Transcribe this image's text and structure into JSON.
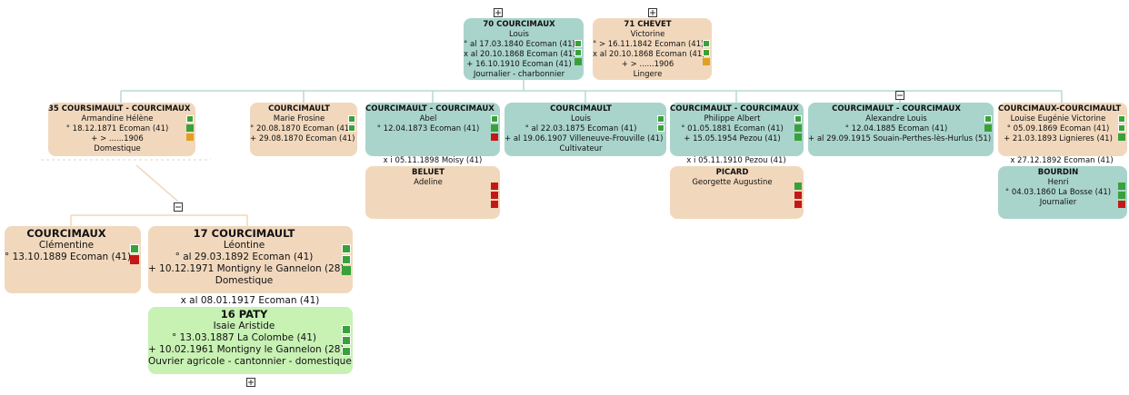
{
  "persons": [
    {
      "title": "70 COURCIMAUX",
      "given": "Louis",
      "details": [
        "° al 17.03.1840 Ecoman (41)",
        "x al 20.10.1868 Ecoman (41)",
        "+ 16.10.1910 Ecoman (41)",
        "Journalier - charbonnier"
      ]
    },
    {
      "title": "71 CHEVET",
      "given": "Victorine",
      "details": [
        "° > 16.11.1842 Ecoman (41)",
        "x al 20.10.1868 Ecoman (41)",
        "+ > ......1906",
        "Lingere"
      ]
    },
    {
      "title": "35 COURSIMAULT - COURCIMAUX",
      "given": "Armandine Hélène",
      "details": [
        "° 18.12.1871 Ecoman (41)",
        "+ > ......1906",
        "Domestique"
      ]
    },
    {
      "title": "COURCIMAULT",
      "given": "Marie Frosine",
      "details": [
        "° 20.08.1870 Ecoman (41)",
        "+ 29.08.1870 Ecoman (41)"
      ]
    },
    {
      "title": "COURCIMAULT - COURCIMAUX",
      "given": "Abel",
      "details": [
        "° 12.04.1873 Ecoman (41)"
      ]
    },
    {
      "title": "BELUET",
      "given": "Adeline",
      "details": []
    },
    {
      "title": "COURCIMAULT",
      "given": "Louis",
      "details": [
        "° al 22.03.1875 Ecoman (41)",
        "+ al 19.06.1907 Villeneuve-Frouville (41)",
        "Cultivateur"
      ]
    },
    {
      "title": "COURCIMAULT - COURCIMAUX",
      "given": "Philippe Albert",
      "details": [
        "° 01.05.1881 Ecoman (41)",
        "+ 15.05.1954 Pezou (41)"
      ]
    },
    {
      "title": "PICARD",
      "given": "Georgette Augustine",
      "details": []
    },
    {
      "title": "COURCIMAULT - COURCIMAUX",
      "given": "Alexandre Louis",
      "details": [
        "° 12.04.1885 Ecoman (41)",
        "+ al 29.09.1915 Souain-Perthes-lès-Hurlus (51)"
      ]
    },
    {
      "title": "COURCIMAUX-COURCIMAULT",
      "given": "Louise Eugénie Victorine",
      "details": [
        "° 05.09.1869 Ecoman (41)",
        "+ 21.03.1893 Lignieres (41)"
      ]
    },
    {
      "title": "BOURDIN",
      "given": "Henri",
      "details": [
        "° 04.03.1860 La Bosse (41)",
        "Journalier"
      ]
    },
    {
      "title": "COURCIMAUX",
      "given": "Clémentine",
      "details": [
        "° 13.10.1889 Ecoman (41)"
      ]
    },
    {
      "title": "17 COURCIMAULT",
      "given": "Léontine",
      "details": [
        "° al 29.03.1892 Ecoman (41)",
        "+ 10.12.1971 Montigny le Gannelon (28)",
        "Domestique"
      ]
    },
    {
      "title": "16 PATY",
      "given": "Isaie Aristide",
      "details": [
        "° 13.03.1887 La Colombe (41)",
        "+ 10.02.1961 Montigny le Gannelon (28)",
        "Ouvrier agricole - cantonnier - domestique"
      ]
    }
  ],
  "marriages": [
    "x i 05.11.1898 Moisy (41)",
    "x i 05.11.1910 Pezou (41)",
    "x 27.12.1892 Ecoman (41)",
    "x al 08.01.1917 Ecoman (41)"
  ]
}
